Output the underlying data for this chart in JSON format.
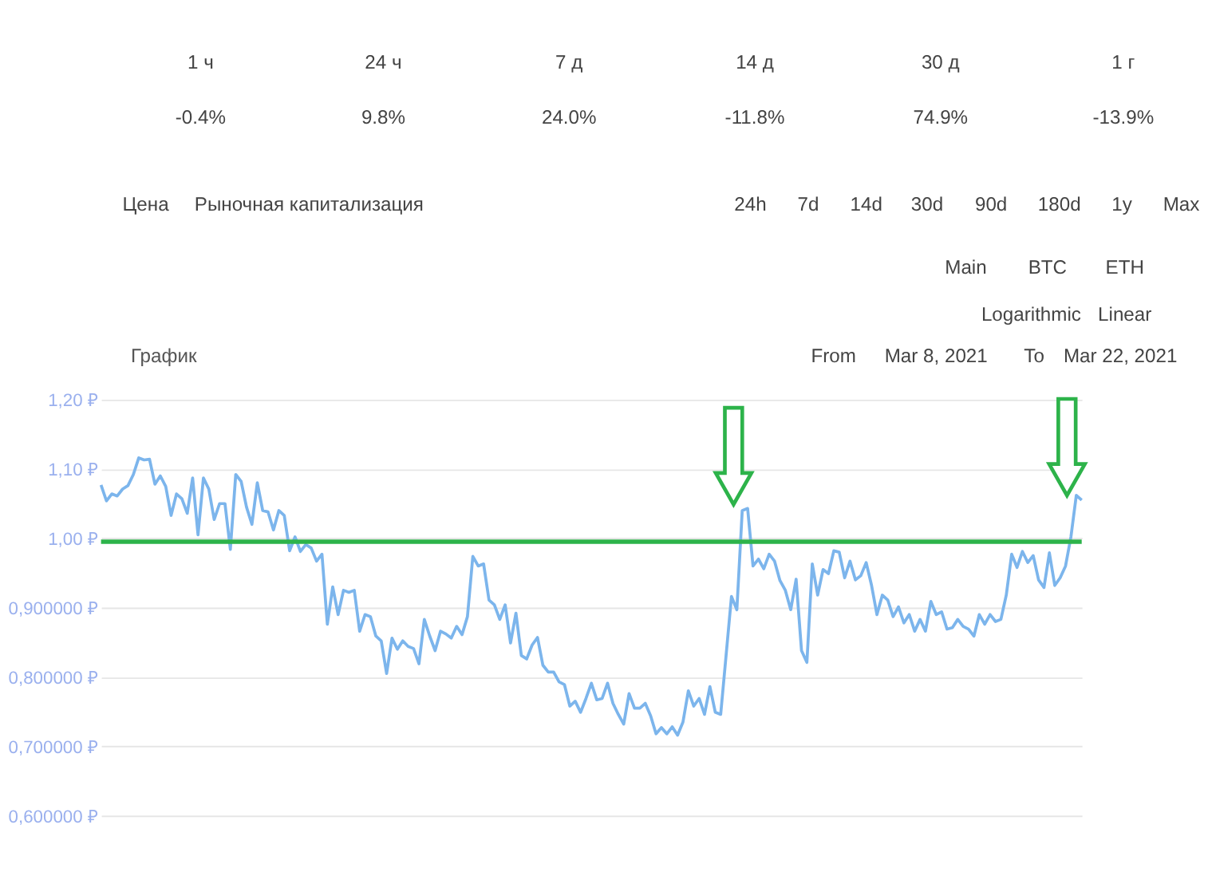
{
  "chart_data": {
    "type": "line",
    "title": "График",
    "annotations": [
      "1 ч",
      "24 ч",
      "7 д",
      "14 д",
      "30 д",
      "1 г",
      "-0.4%",
      "9.8%",
      "24.0%",
      "-11.8%",
      "74.9%",
      "-13.9%",
      "Цена",
      "Рыночная капитализация",
      "24h",
      "7d",
      "14d",
      "30d",
      "90d",
      "180d",
      "1y",
      "Max",
      "Main",
      "BTC",
      "ETH",
      "Logarithmic",
      "Linear",
      "From",
      "Mar 8, 2021",
      "To",
      "Mar 22, 2021"
    ],
    "categories": [
      null,
      null,
      null,
      null,
      null,
      null,
      null,
      null,
      null,
      null,
      null,
      null,
      null,
      null,
      null,
      null,
      null,
      null,
      null,
      null,
      null,
      null,
      null,
      null,
      null,
      null,
      null,
      null,
      null,
      null,
      null,
      null,
      null,
      null,
      null,
      null,
      null,
      null,
      null,
      null,
      null,
      null,
      null,
      null,
      null,
      null,
      null,
      null,
      null,
      null,
      null,
      null,
      null,
      null,
      null,
      null,
      null,
      null,
      null,
      null,
      null,
      null,
      null,
      null,
      null,
      null,
      null,
      null,
      null,
      null,
      null,
      null,
      null,
      null,
      null,
      null,
      null,
      null,
      null,
      null,
      null,
      null,
      null,
      null,
      null,
      null,
      null,
      null,
      null,
      null,
      null,
      null,
      null,
      null,
      null,
      null,
      null,
      null,
      null,
      null,
      null,
      null,
      null,
      null,
      null,
      null,
      null,
      null,
      null,
      null,
      null,
      null,
      null,
      null,
      null,
      null,
      null,
      null,
      null,
      null,
      null,
      null,
      null,
      null,
      null,
      null,
      null,
      null,
      null,
      null,
      null,
      null,
      null,
      null,
      null,
      null,
      null,
      null,
      null,
      null,
      null,
      null,
      null,
      null,
      null,
      null,
      null,
      null,
      null,
      null,
      null,
      null,
      null,
      null,
      null,
      null,
      null,
      null,
      null,
      null,
      null,
      null,
      null,
      null,
      null,
      null,
      null,
      null,
      null,
      null,
      null,
      null,
      null,
      null,
      null,
      null,
      null,
      null,
      null,
      null,
      null,
      null,
      null
    ],
    "series": [
      {
        "color": "#7cb5ec",
        "values": [
          1.077,
          1.054,
          1.064,
          1.061,
          1.071,
          1.076,
          1.092,
          1.116,
          1.113,
          1.114,
          1.078,
          1.09,
          1.075,
          1.033,
          1.064,
          1.057,
          1.036,
          1.087,
          1.005,
          1.087,
          1.071,
          1.027,
          1.05,
          1.05,
          0.984,
          1.092,
          1.082,
          1.045,
          1.02,
          1.08,
          1.04,
          1.038,
          1.012,
          1.04,
          1.033,
          0.982,
          1.002,
          0.981,
          0.991,
          0.986,
          0.967,
          0.977,
          0.876,
          0.93,
          0.89,
          0.925,
          0.922,
          0.925,
          0.866,
          0.89,
          0.887,
          0.859,
          0.852,
          0.805,
          0.856,
          0.84,
          0.852,
          0.844,
          0.841,
          0.819,
          0.883,
          0.859,
          0.838,
          0.866,
          0.862,
          0.856,
          0.873,
          0.861,
          0.887,
          0.974,
          0.96,
          0.963,
          0.911,
          0.904,
          0.883,
          0.904,
          0.849,
          0.892,
          0.831,
          0.826,
          0.846,
          0.857,
          0.817,
          0.807,
          0.807,
          0.793,
          0.789,
          0.758,
          0.765,
          0.749,
          0.769,
          0.791,
          0.767,
          0.769,
          0.791,
          0.762,
          0.746,
          0.732,
          0.776,
          0.755,
          0.755,
          0.762,
          0.744,
          0.718,
          0.727,
          0.718,
          0.728,
          0.716,
          0.735,
          0.78,
          0.758,
          0.769,
          0.746,
          0.786,
          0.749,
          0.746,
          0.831,
          0.916,
          0.897,
          1.04,
          1.043,
          0.96,
          0.97,
          0.956,
          0.977,
          0.967,
          0.939,
          0.925,
          0.897,
          0.941,
          0.838,
          0.821,
          0.963,
          0.918,
          0.955,
          0.949,
          0.982,
          0.98,
          0.943,
          0.967,
          0.94,
          0.946,
          0.965,
          0.932,
          0.89,
          0.918,
          0.911,
          0.887,
          0.901,
          0.878,
          0.89,
          0.866,
          0.883,
          0.866,
          0.909,
          0.89,
          0.894,
          0.869,
          0.871,
          0.883,
          0.873,
          0.869,
          0.859,
          0.89,
          0.876,
          0.89,
          0.88,
          0.883,
          0.918,
          0.977,
          0.958,
          0.981,
          0.965,
          0.975,
          0.94,
          0.929,
          0.979,
          0.932,
          0.943,
          0.96,
          1.002,
          1.062,
          1.055
        ]
      }
    ],
    "ylim": [
      0.6,
      1.2
    ],
    "yticks": [
      {
        "value": 0.6,
        "label": "0,600000 ₽"
      },
      {
        "value": 0.7,
        "label": "0,700000 ₽"
      },
      {
        "value": 0.8,
        "label": "0,800000 ₽"
      },
      {
        "value": 0.9,
        "label": "0,900000 ₽"
      },
      {
        "value": 1.0,
        "label": "1,00 ₽"
      },
      {
        "value": 1.1,
        "label": "1,10 ₽"
      },
      {
        "value": 1.2,
        "label": "1,20 ₽"
      }
    ],
    "ref_lines": [
      {
        "axis": "y",
        "value": 0.995,
        "color": "#2db34a",
        "line_style": "solid"
      }
    ],
    "grid": "y",
    "marker": "none",
    "line_style": "solid",
    "tick_labels": "y"
  }
}
